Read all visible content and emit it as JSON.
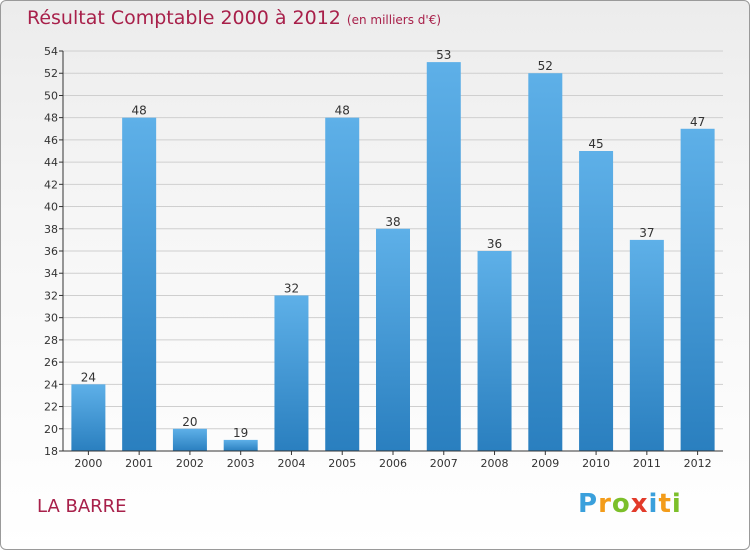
{
  "header": {
    "title": "Résultat Comptable 2000 à 2012",
    "subtitle": "(en milliers d'€)"
  },
  "commune": "LA BARRE",
  "logo": [
    "P",
    "r",
    "o",
    "x",
    "i",
    "t",
    "i"
  ],
  "colors": {
    "bar_light": "#5eb0e8",
    "bar_dark": "#2a7fbf",
    "title": "#a8204a",
    "axis": "#333333",
    "grid": "#cfcfcf"
  },
  "chart_data": {
    "type": "bar",
    "title": "Résultat Comptable 2000 à 2012",
    "subtitle": "(en milliers d'€)",
    "categories": [
      "2000",
      "2001",
      "2002",
      "2003",
      "2004",
      "2005",
      "2006",
      "2007",
      "2008",
      "2009",
      "2010",
      "2011",
      "2012"
    ],
    "values": [
      24,
      48,
      20,
      19,
      32,
      48,
      38,
      53,
      36,
      52,
      45,
      37,
      47
    ],
    "ylim": [
      18,
      54
    ],
    "yticks": [
      18,
      20,
      22,
      24,
      26,
      28,
      30,
      32,
      34,
      36,
      38,
      40,
      42,
      44,
      46,
      48,
      50,
      52,
      54
    ],
    "xlabel": "",
    "ylabel": "",
    "grid": true
  }
}
